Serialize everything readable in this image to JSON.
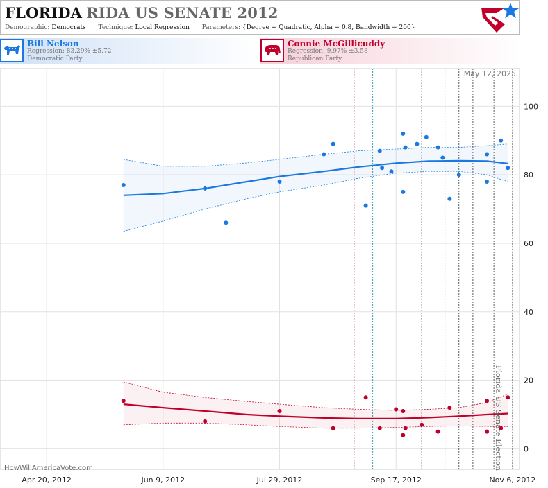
{
  "header": {
    "state": "FLORIDA",
    "race": "RIDA US SENATE 2012",
    "demographic_label": "Demographic:",
    "demographic_value": "Democrats",
    "technique_label": "Technique:",
    "technique_value": "Local Regression",
    "parameters_label": "Parameters:",
    "parameters_value": "{Degree = Quadratic, Alpha = 0.8, Bandwidth = 200}"
  },
  "candidates": {
    "dem": {
      "name": "Bill Nelson",
      "regression": "Regression: 83.29% ±5.72",
      "party": "Democratic Party",
      "color": "#1a78e0",
      "icon": "donkey-icon"
    },
    "rep": {
      "name": "Connie McGillicuddy",
      "regression": "Regression: 9.97% ±3.58",
      "party": "Republican Party",
      "color": "#c0002a",
      "icon": "elephant-icon"
    }
  },
  "footer": {
    "credit": "HowWillAmericaVote.com",
    "date_stamp": "May 12, 2025",
    "event_label": "Florida US Senate Election"
  },
  "chart_data": {
    "type": "scatter",
    "title": "",
    "x_ticks": [
      "Apr 20, 2012",
      "Jun 9, 2012",
      "Jul 29, 2012",
      "Sep 17, 2012",
      "Nov 6, 2012"
    ],
    "x_tick_dates": [
      "2012-04-20",
      "2012-06-09",
      "2012-07-29",
      "2012-09-17",
      "2012-11-06"
    ],
    "xlim": [
      "2012-03-31",
      "2012-11-09"
    ],
    "y_ticks": [
      0,
      20,
      40,
      60,
      80,
      100
    ],
    "ylim": [
      -6,
      111
    ],
    "y_axis_side": "right",
    "grid": true,
    "event_lines": [
      {
        "date": "2012-08-30",
        "color": "#a0003a"
      },
      {
        "date": "2012-09-07",
        "color": "#0a8a9a"
      },
      {
        "date": "2012-09-28",
        "color": "#333333"
      },
      {
        "date": "2012-10-08",
        "color": "#333333"
      },
      {
        "date": "2012-10-14",
        "color": "#333333"
      },
      {
        "date": "2012-10-20",
        "color": "#333333"
      },
      {
        "date": "2012-10-29",
        "color": "#333333"
      },
      {
        "date": "2012-11-06",
        "color": "#333333"
      }
    ],
    "series": [
      {
        "name": "Bill Nelson",
        "color": "#1a78e0",
        "points": [
          [
            "2012-05-23",
            77
          ],
          [
            "2012-06-27",
            76
          ],
          [
            "2012-07-06",
            66
          ],
          [
            "2012-07-29",
            78
          ],
          [
            "2012-08-17",
            86
          ],
          [
            "2012-08-21",
            89
          ],
          [
            "2012-09-04",
            71
          ],
          [
            "2012-09-10",
            87
          ],
          [
            "2012-09-11",
            82
          ],
          [
            "2012-09-15",
            81
          ],
          [
            "2012-09-20",
            92
          ],
          [
            "2012-09-20",
            75
          ],
          [
            "2012-09-21",
            88
          ],
          [
            "2012-09-26",
            89
          ],
          [
            "2012-09-30",
            91
          ],
          [
            "2012-10-05",
            88
          ],
          [
            "2012-10-07",
            85
          ],
          [
            "2012-10-10",
            73
          ],
          [
            "2012-10-14",
            80
          ],
          [
            "2012-10-26",
            86
          ],
          [
            "2012-10-26",
            78
          ],
          [
            "2012-11-01",
            90
          ],
          [
            "2012-11-04",
            82
          ]
        ],
        "fit": [
          [
            "2012-05-23",
            74
          ],
          [
            "2012-06-09",
            74.5
          ],
          [
            "2012-06-27",
            76
          ],
          [
            "2012-07-15",
            78
          ],
          [
            "2012-07-29",
            79.5
          ],
          [
            "2012-08-17",
            81
          ],
          [
            "2012-09-01",
            82.3
          ],
          [
            "2012-09-17",
            83.4
          ],
          [
            "2012-10-01",
            84
          ],
          [
            "2012-10-14",
            84.1
          ],
          [
            "2012-10-26",
            84
          ],
          [
            "2012-11-04",
            83.3
          ]
        ],
        "upper": [
          [
            "2012-05-23",
            84.5
          ],
          [
            "2012-06-09",
            82.5
          ],
          [
            "2012-06-27",
            82.5
          ],
          [
            "2012-07-15",
            83.5
          ],
          [
            "2012-07-29",
            84.5
          ],
          [
            "2012-08-17",
            86
          ],
          [
            "2012-09-01",
            87
          ],
          [
            "2012-09-17",
            87.5
          ],
          [
            "2012-10-01",
            88
          ],
          [
            "2012-10-14",
            88
          ],
          [
            "2012-10-26",
            88.5
          ],
          [
            "2012-11-04",
            89
          ]
        ],
        "lower": [
          [
            "2012-05-23",
            63.5
          ],
          [
            "2012-06-09",
            66.5
          ],
          [
            "2012-06-27",
            70
          ],
          [
            "2012-07-15",
            73
          ],
          [
            "2012-07-29",
            75
          ],
          [
            "2012-08-17",
            77
          ],
          [
            "2012-09-01",
            79
          ],
          [
            "2012-09-17",
            80.5
          ],
          [
            "2012-10-01",
            81
          ],
          [
            "2012-10-14",
            81
          ],
          [
            "2012-10-26",
            80
          ],
          [
            "2012-11-04",
            78
          ]
        ]
      },
      {
        "name": "Connie McGillicuddy",
        "color": "#c0002a",
        "points": [
          [
            "2012-05-23",
            14
          ],
          [
            "2012-06-27",
            8
          ],
          [
            "2012-07-29",
            11
          ],
          [
            "2012-08-21",
            6
          ],
          [
            "2012-09-04",
            15
          ],
          [
            "2012-09-10",
            6
          ],
          [
            "2012-09-17",
            11.5
          ],
          [
            "2012-09-20",
            11
          ],
          [
            "2012-09-20",
            4
          ],
          [
            "2012-09-21",
            6
          ],
          [
            "2012-09-28",
            7
          ],
          [
            "2012-10-05",
            5
          ],
          [
            "2012-10-10",
            12
          ],
          [
            "2012-10-26",
            14
          ],
          [
            "2012-10-26",
            5
          ],
          [
            "2012-11-01",
            6
          ],
          [
            "2012-11-04",
            15
          ]
        ],
        "fit": [
          [
            "2012-05-23",
            13
          ],
          [
            "2012-06-09",
            12
          ],
          [
            "2012-06-27",
            11
          ],
          [
            "2012-07-15",
            10
          ],
          [
            "2012-07-29",
            9.5
          ],
          [
            "2012-08-17",
            9
          ],
          [
            "2012-09-01",
            8.8
          ],
          [
            "2012-09-17",
            8.8
          ],
          [
            "2012-10-01",
            9.1
          ],
          [
            "2012-10-14",
            9.5
          ],
          [
            "2012-10-26",
            10
          ],
          [
            "2012-11-04",
            10.3
          ]
        ],
        "upper": [
          [
            "2012-05-23",
            19.5
          ],
          [
            "2012-06-09",
            16.5
          ],
          [
            "2012-06-27",
            15
          ],
          [
            "2012-07-15",
            13.8
          ],
          [
            "2012-07-29",
            13
          ],
          [
            "2012-08-17",
            12
          ],
          [
            "2012-09-01",
            11.5
          ],
          [
            "2012-09-17",
            11.2
          ],
          [
            "2012-10-01",
            11.5
          ],
          [
            "2012-10-14",
            12
          ],
          [
            "2012-10-26",
            13.5
          ],
          [
            "2012-11-04",
            16
          ]
        ],
        "lower": [
          [
            "2012-05-23",
            7
          ],
          [
            "2012-06-09",
            7.5
          ],
          [
            "2012-06-27",
            7.5
          ],
          [
            "2012-07-15",
            7
          ],
          [
            "2012-07-29",
            6.5
          ],
          [
            "2012-08-17",
            6
          ],
          [
            "2012-09-01",
            6
          ],
          [
            "2012-09-17",
            6.2
          ],
          [
            "2012-10-01",
            6.5
          ],
          [
            "2012-10-14",
            6.7
          ],
          [
            "2012-10-26",
            6.5
          ],
          [
            "2012-11-04",
            6.5
          ]
        ]
      }
    ]
  }
}
